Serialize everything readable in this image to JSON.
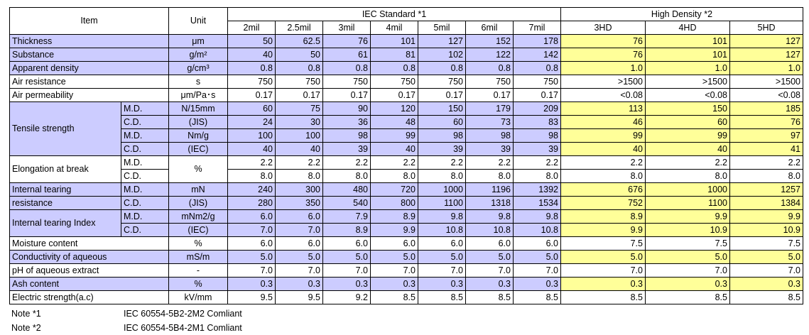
{
  "header": {
    "item": "Item",
    "unit": "Unit",
    "iec_standard": "IEC Standard *1",
    "high_density": "High Density *2",
    "iec_cols": [
      "2mil",
      "2.5mil",
      "3mil",
      "4mil",
      "5mil",
      "6mil",
      "7mil"
    ],
    "hd_cols": [
      "3HD",
      "4HD",
      "5HD"
    ]
  },
  "rows": [
    {
      "item": "Thickness",
      "unit": "μm",
      "iec": [
        "50",
        "62.5",
        "76",
        "101",
        "127",
        "152",
        "178"
      ],
      "hd": [
        "76",
        "101",
        "127"
      ]
    },
    {
      "item": "Substance",
      "unit": "g/m²",
      "iec": [
        "40",
        "50",
        "61",
        "81",
        "102",
        "122",
        "142"
      ],
      "hd": [
        "76",
        "101",
        "127"
      ]
    },
    {
      "item": "Apparent density",
      "unit": "g/cm³",
      "iec": [
        "0.8",
        "0.8",
        "0.8",
        "0.8",
        "0.8",
        "0.8",
        "0.8"
      ],
      "hd": [
        "1.0",
        "1.0",
        "1.0"
      ]
    },
    {
      "item": "Air resistance",
      "unit": "s",
      "iec": [
        "750",
        "750",
        "750",
        "750",
        "750",
        "750",
        "750"
      ],
      "hd": [
        ">1500",
        ">1500",
        ">1500"
      ]
    },
    {
      "item": "Air permeability",
      "unit": "μm/Pa･s",
      "iec": [
        "0.17",
        "0.17",
        "0.17",
        "0.17",
        "0.17",
        "0.17",
        "0.17"
      ],
      "hd": [
        "<0.08",
        "<0.08",
        "<0.08"
      ]
    },
    {
      "group": "Tensile strength",
      "sub": "M.D.",
      "unit": "N/15mm",
      "iec": [
        "60",
        "75",
        "90",
        "120",
        "150",
        "179",
        "209"
      ],
      "hd": [
        "113",
        "150",
        "185"
      ]
    },
    {
      "group": "Tensile strength",
      "sub": "C.D.",
      "unit": "(JIS)",
      "iec": [
        "24",
        "30",
        "36",
        "48",
        "60",
        "73",
        "83"
      ],
      "hd": [
        "46",
        "60",
        "76"
      ]
    },
    {
      "group": "Tensile strength",
      "sub": "M.D.",
      "unit": "Nm/g",
      "iec": [
        "100",
        "100",
        "98",
        "99",
        "98",
        "98",
        "98"
      ],
      "hd": [
        "99",
        "99",
        "97"
      ]
    },
    {
      "group": "Tensile strength",
      "sub": "C.D.",
      "unit": "(IEC)",
      "iec": [
        "40",
        "40",
        "39",
        "40",
        "39",
        "39",
        "39"
      ],
      "hd": [
        "40",
        "40",
        "41"
      ]
    },
    {
      "group": "Elongation at break",
      "sub": "M.D.",
      "unit": "%",
      "iec": [
        "2.2",
        "2.2",
        "2.2",
        "2.2",
        "2.2",
        "2.2",
        "2.2"
      ],
      "hd": [
        "2.2",
        "2.2",
        "2.2"
      ]
    },
    {
      "group": "Elongation at break",
      "sub": "C.D.",
      "unit": "",
      "iec": [
        "8.0",
        "8.0",
        "8.0",
        "8.0",
        "8.0",
        "8.0",
        "8.0"
      ],
      "hd": [
        "8.0",
        "8.0",
        "8.0"
      ]
    },
    {
      "group": "Internal tearing",
      "sub": "M.D.",
      "unit": "mN",
      "iec": [
        "240",
        "300",
        "480",
        "720",
        "1000",
        "1196",
        "1392"
      ],
      "hd": [
        "676",
        "1000",
        "1257"
      ]
    },
    {
      "group": "resistance",
      "sub": "C.D.",
      "unit": "(JIS)",
      "iec": [
        "280",
        "350",
        "540",
        "800",
        "1100",
        "1318",
        "1534"
      ],
      "hd": [
        "752",
        "1100",
        "1384"
      ]
    },
    {
      "group": "Internal tearing Index",
      "sub": "M.D.",
      "unit": "mNm2/g",
      "iec": [
        "6.0",
        "6.0",
        "7.9",
        "8.9",
        "9.8",
        "9.8",
        "9.8"
      ],
      "hd": [
        "8.9",
        "9.9",
        "9.9"
      ]
    },
    {
      "group": "Internal tearing Index",
      "sub": "C.D.",
      "unit": "(IEC)",
      "iec": [
        "7.0",
        "7.0",
        "8.9",
        "9.9",
        "10.8",
        "10.8",
        "10.8"
      ],
      "hd": [
        "9.9",
        "10.9",
        "10.9"
      ]
    },
    {
      "item": "Moisture content",
      "unit": "%",
      "iec": [
        "6.0",
        "6.0",
        "6.0",
        "6.0",
        "6.0",
        "6.0",
        "6.0"
      ],
      "hd": [
        "7.5",
        "7.5",
        "7.5"
      ]
    },
    {
      "item": "Conductivity of aqueous",
      "unit": "mS/m",
      "iec": [
        "5.0",
        "5.0",
        "5.0",
        "5.0",
        "5.0",
        "5.0",
        "5.0"
      ],
      "hd": [
        "5.0",
        "5.0",
        "5.0"
      ]
    },
    {
      "item": "pH of aqueous extract",
      "unit": "-",
      "iec": [
        "7.0",
        "7.0",
        "7.0",
        "7.0",
        "7.0",
        "7.0",
        "7.0"
      ],
      "hd": [
        "7.0",
        "7.0",
        "7.0"
      ]
    },
    {
      "item": "Ash content",
      "unit": "%",
      "iec": [
        "0.3",
        "0.3",
        "0.3",
        "0.3",
        "0.3",
        "0.3",
        "0.3"
      ],
      "hd": [
        "0.3",
        "0.3",
        "0.3"
      ]
    },
    {
      "item": "Electric strength(a.c)",
      "unit": "kV/mm",
      "iec": [
        "9.5",
        "9.5",
        "9.2",
        "8.5",
        "8.5",
        "8.5",
        "8.5"
      ],
      "hd": [
        "8.5",
        "8.5",
        "8.5"
      ]
    }
  ],
  "notes": [
    {
      "label": "Note *1",
      "text": "IEC 60554-5B2-2M2 Comliant"
    },
    {
      "label": "Note *2",
      "text": "IEC 60554-5B4-2M1 Comliant"
    }
  ],
  "colors": {
    "purple_fill": "#ccccff",
    "yellow_fill": "#ffff99"
  }
}
